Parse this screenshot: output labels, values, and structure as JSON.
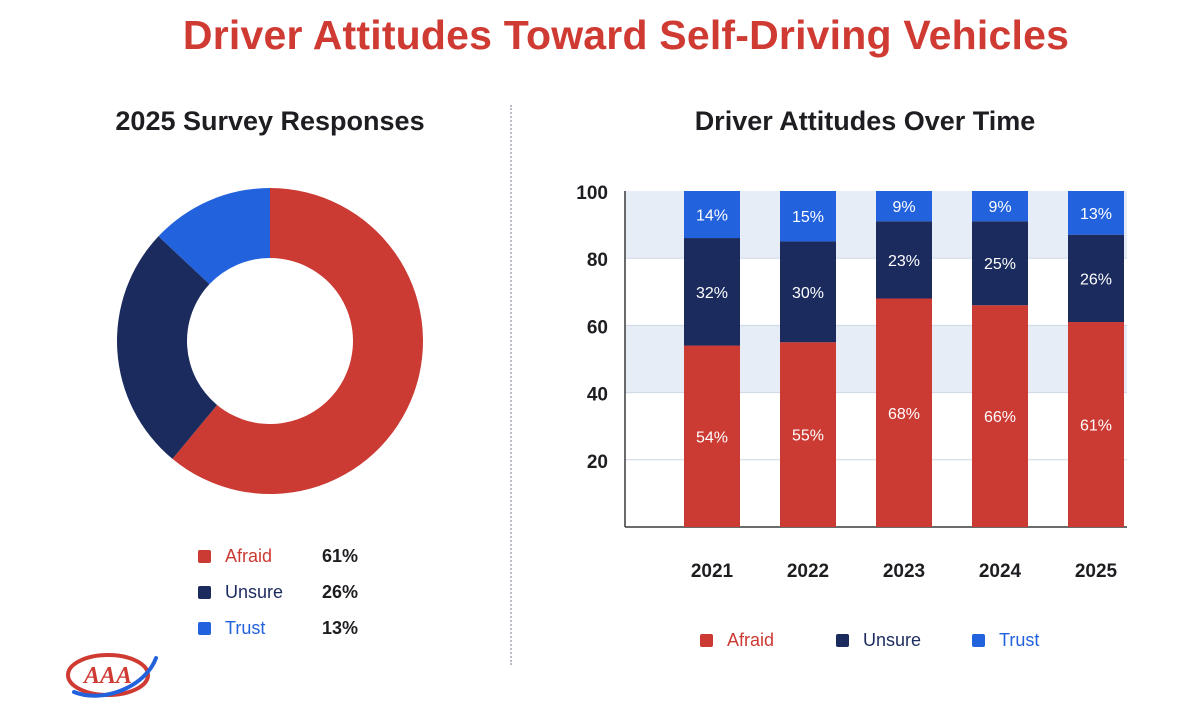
{
  "title": "Driver Attitudes Toward Self-Driving Vehicles",
  "colors": {
    "afraid": "#cb3a33",
    "unsure": "#1b2b5e",
    "trust": "#2362dd",
    "title": "#cf3a33",
    "band": "#e7edf7"
  },
  "logo_text": "AAA",
  "legend_labels": {
    "afraid": "Afraid",
    "unsure": "Unsure",
    "trust": "Trust"
  },
  "chart_data": [
    {
      "type": "pie",
      "variant": "donut",
      "title": "2025 Survey Responses",
      "labels": [
        "Afraid",
        "Unsure",
        "Trust"
      ],
      "values": [
        61,
        26,
        13
      ],
      "value_labels": [
        "61%",
        "26%",
        "13%"
      ],
      "legend_position": "bottom"
    },
    {
      "type": "bar",
      "stacked": true,
      "title": "Driver Attitudes Over Time",
      "categories": [
        "2021",
        "2022",
        "2023",
        "2024",
        "2025"
      ],
      "series": [
        {
          "name": "Afraid",
          "values": [
            54,
            55,
            68,
            66,
            61
          ],
          "labels": [
            "54%",
            "55%",
            "68%",
            "66%",
            "61%"
          ]
        },
        {
          "name": "Unsure",
          "values": [
            32,
            30,
            23,
            25,
            26
          ],
          "labels": [
            "32%",
            "30%",
            "23%",
            "25%",
            "26%"
          ]
        },
        {
          "name": "Trust",
          "values": [
            14,
            15,
            9,
            9,
            13
          ],
          "labels": [
            "14%",
            "15%",
            "9%",
            "9%",
            "13%"
          ]
        }
      ],
      "yticks": [
        "20",
        "40",
        "60",
        "80",
        "100"
      ],
      "ylim": [
        0,
        100
      ],
      "xlabel": "",
      "ylabel": "",
      "legend_position": "bottom"
    }
  ]
}
